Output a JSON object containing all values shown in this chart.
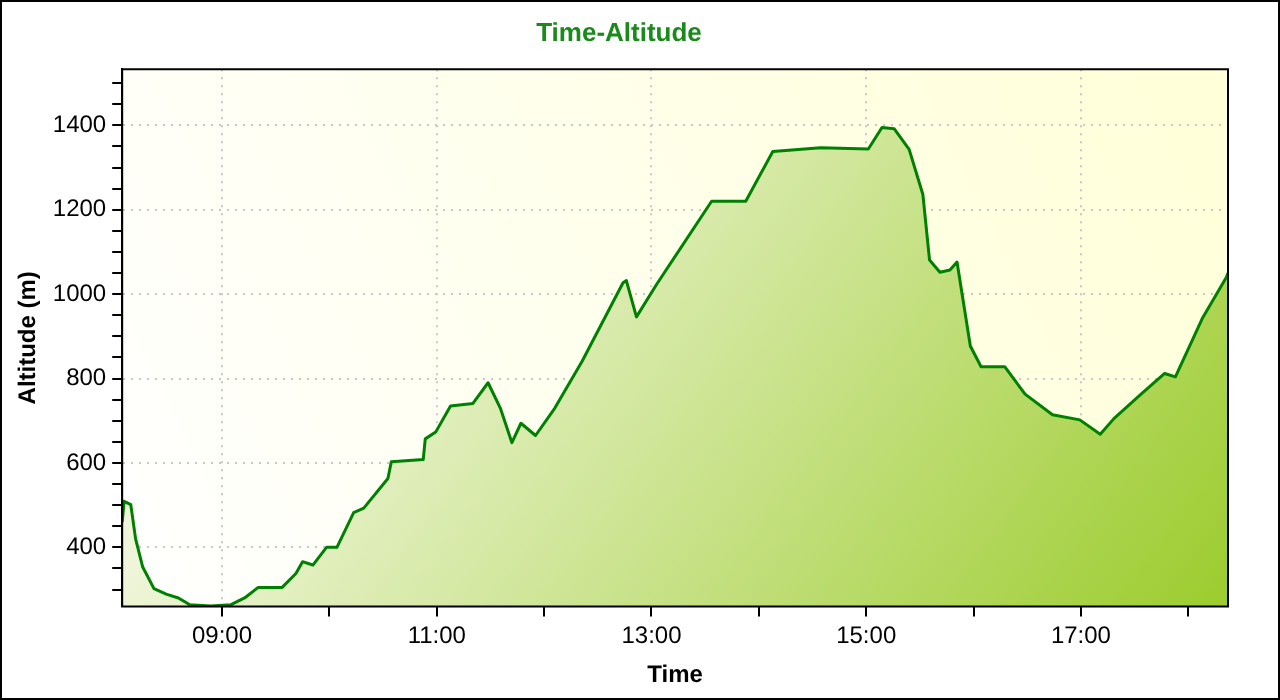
{
  "chart_data": {
    "type": "area",
    "title": "Time-Altitude",
    "xlabel": "Time",
    "ylabel": "Altitude (m)",
    "x": [
      8.07,
      8.088,
      8.15,
      8.195,
      8.26,
      8.366,
      8.48,
      8.594,
      8.7,
      8.893,
      9.084,
      9.21,
      9.337,
      9.56,
      9.688,
      9.75,
      9.846,
      9.973,
      10.07,
      10.226,
      10.32,
      10.545,
      10.577,
      10.874,
      10.893,
      10.99,
      11.128,
      11.337,
      11.478,
      11.592,
      11.7,
      11.784,
      11.92,
      12.1,
      12.354,
      12.735,
      12.766,
      12.86,
      13.05,
      13.56,
      13.878,
      14.13,
      14.575,
      15.02,
      15.147,
      15.26,
      15.4,
      15.528,
      15.59,
      15.687,
      15.78,
      15.846,
      15.97,
      16.07,
      16.29,
      16.48,
      16.735,
      16.99,
      17.18,
      17.307,
      17.56,
      17.78,
      17.88,
      18.13,
      18.355,
      18.37
    ],
    "series": [
      {
        "color": "#008000",
        "values": [
          460,
          509,
          501,
          420,
          354,
          302,
          289,
          280,
          264,
          261,
          264,
          280,
          305,
          305,
          338,
          366,
          358,
          400,
          400,
          482,
          493,
          563,
          603,
          608,
          657,
          673,
          735,
          741,
          790,
          730,
          648,
          694,
          665,
          730,
          841,
          1027,
          1032,
          946,
          1024,
          1220,
          1220,
          1338,
          1347,
          1344,
          1395,
          1392,
          1343,
          1236,
          1081,
          1052,
          1057,
          1076,
          877,
          828,
          828,
          763,
          714,
          702,
          668,
          705,
          763,
          812,
          804,
          942,
          1040,
          1050
        ]
      }
    ],
    "xlim": [
      8.07,
      18.37
    ],
    "xticks": [
      {
        "value": 9,
        "label": "09:00"
      },
      {
        "value": 10,
        "label": null
      },
      {
        "value": 11,
        "label": "11:00"
      },
      {
        "value": 12,
        "label": null
      },
      {
        "value": 13,
        "label": "13:00"
      },
      {
        "value": 14,
        "label": null
      },
      {
        "value": 15,
        "label": "15:00"
      },
      {
        "value": 16,
        "label": null
      },
      {
        "value": 17,
        "label": "17:00"
      },
      {
        "value": 18,
        "label": null
      }
    ],
    "ylim": [
      260,
      1533
    ],
    "yticks": [
      {
        "value": 300,
        "label": null
      },
      {
        "value": 350,
        "label": null
      },
      400,
      {
        "value": 450,
        "label": null
      },
      {
        "value": 500,
        "label": null
      },
      {
        "value": 550,
        "label": null
      },
      600,
      {
        "value": 650,
        "label": null
      },
      {
        "value": 700,
        "label": null
      },
      {
        "value": 750,
        "label": null
      },
      800,
      {
        "value": 850,
        "label": null
      },
      {
        "value": 900,
        "label": null
      },
      {
        "value": 950,
        "label": null
      },
      1000,
      {
        "value": 1050,
        "label": null
      },
      {
        "value": 1100,
        "label": null
      },
      {
        "value": 1150,
        "label": null
      },
      1200,
      {
        "value": 1250,
        "label": null
      },
      {
        "value": 1300,
        "label": null
      },
      {
        "value": 1350,
        "label": null
      },
      1400,
      {
        "value": 1450,
        "label": null
      },
      {
        "value": 1500,
        "label": null
      }
    ],
    "grid": true,
    "legend": false,
    "marker": "none",
    "line_style": "solid"
  }
}
